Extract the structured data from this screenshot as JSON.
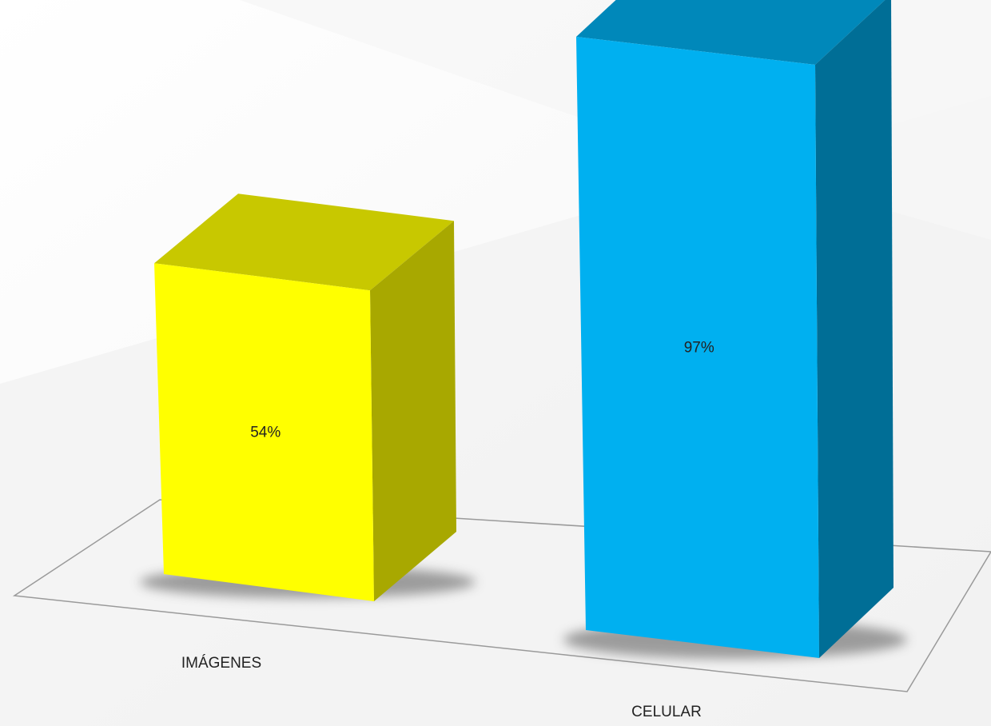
{
  "chart_data": {
    "type": "bar",
    "categories": [
      "IMÁGENES",
      "CELULAR"
    ],
    "values": [
      54,
      97
    ],
    "data_labels": [
      "54%",
      "97%"
    ],
    "title": "",
    "xlabel": "",
    "ylabel": "",
    "ylim": [
      0,
      100
    ],
    "three_d": true,
    "grid": false,
    "legend": "none",
    "colors": {
      "IMÁGENES": {
        "front": "#FFFF00",
        "side": "#A8A800",
        "top": "#C8C800"
      },
      "CELULAR": {
        "front": "#00B0F0",
        "side": "#006E96",
        "top": "#0088BA"
      },
      "floor_line": "#999999",
      "label_text": "#222222"
    }
  }
}
